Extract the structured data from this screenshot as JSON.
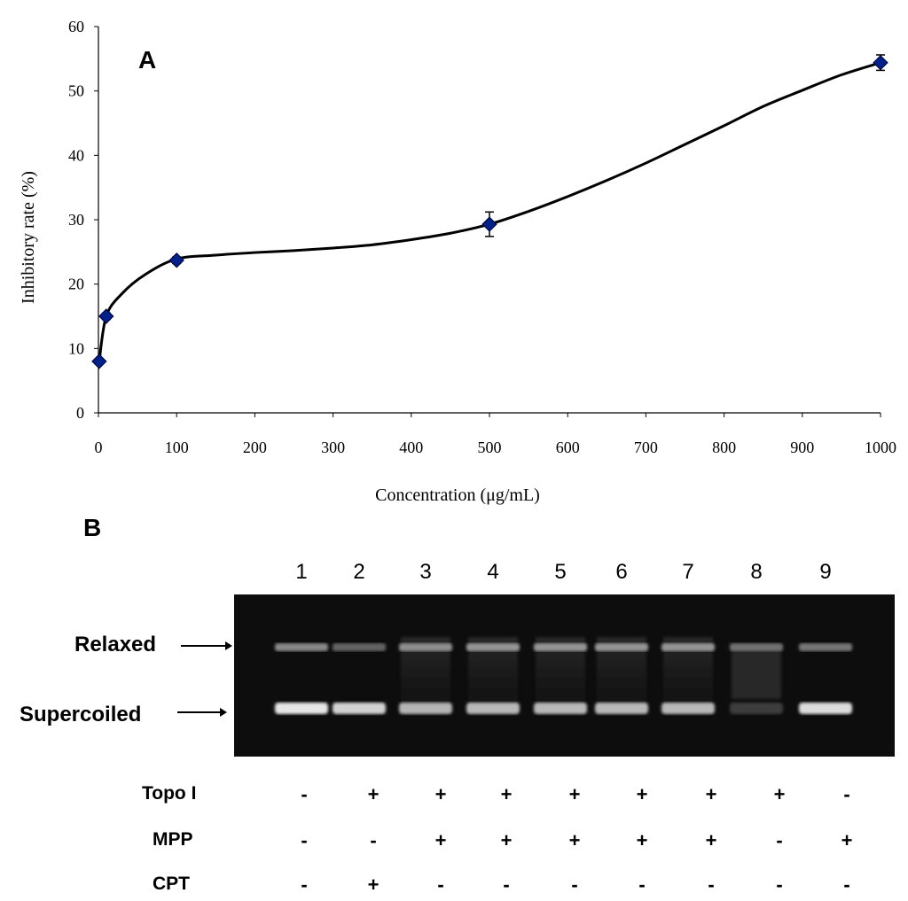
{
  "chart_data": {
    "type": "line",
    "panel_label": "A",
    "xlabel": "Concentration (μg/mL)",
    "ylabel": "Inhibitory rate (%)",
    "xlim": [
      0,
      1000
    ],
    "ylim": [
      0,
      60
    ],
    "xticks": [
      0,
      100,
      200,
      300,
      400,
      500,
      600,
      700,
      800,
      900,
      1000
    ],
    "yticks": [
      0,
      10,
      20,
      30,
      40,
      50,
      60
    ],
    "series": [
      {
        "name": "MPP",
        "x": [
          1,
          10,
          100,
          500,
          1000
        ],
        "y": [
          8.0,
          15.0,
          23.7,
          29.3,
          54.4
        ],
        "error": [
          0.4,
          0.5,
          0.5,
          1.9,
          1.2
        ],
        "color": "#00208a"
      }
    ],
    "smooth_curve": {
      "x": [
        1,
        10,
        30,
        60,
        100,
        150,
        200,
        250,
        300,
        350,
        400,
        450,
        500,
        550,
        600,
        650,
        700,
        750,
        800,
        850,
        900,
        950,
        1000
      ],
      "y": [
        8.0,
        15.0,
        18.5,
        21.5,
        23.9,
        24.5,
        24.9,
        25.2,
        25.6,
        26.1,
        26.9,
        27.9,
        29.3,
        31.3,
        33.6,
        36.1,
        38.8,
        41.7,
        44.6,
        47.6,
        50.1,
        52.5,
        54.4
      ]
    }
  },
  "gel": {
    "panel_label": "B",
    "lanes": [
      "1",
      "2",
      "3",
      "4",
      "5",
      "6",
      "7",
      "8",
      "9"
    ],
    "band_labels": {
      "relaxed": "Relaxed",
      "supercoiled": "Supercoiled"
    },
    "rows": [
      {
        "label": "Topo I",
        "signs": [
          "-",
          "+",
          "+",
          "+",
          "+",
          "+",
          "+",
          "+",
          "-"
        ]
      },
      {
        "label": "MPP",
        "signs": [
          "-",
          "-",
          "+",
          "+",
          "+",
          "+",
          "+",
          "-",
          "+"
        ]
      },
      {
        "label": "CPT",
        "signs": [
          "-",
          "+",
          "-",
          "-",
          "-",
          "-",
          "-",
          "-",
          "-"
        ]
      }
    ]
  }
}
